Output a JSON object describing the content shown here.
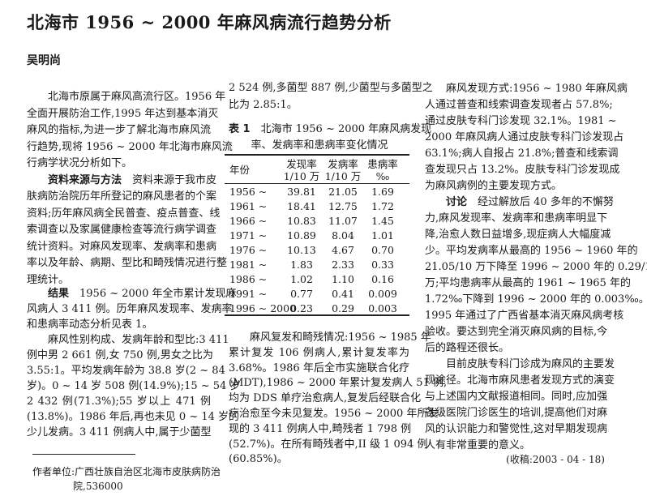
{
  "title": "北海市 1956 ~ 2000 年麻风病流行趋势分析",
  "author": "吴明尚",
  "columns": {
    "left_a": [
      {
        "indent": true,
        "lines": [
          "北海市原属于麻风高流行区。1956 年",
          "全面开展防治工作,1995 年达到基本消灭",
          "麻风的指标,为进一步了解北海市麻风流",
          "行趋势,现将 1956 ~ 2000 年北海市麻风流",
          "行病学状况分析如下。"
        ]
      },
      {
        "indent": true,
        "lead": "资料来源与方法",
        "lines": [
          "　资料来源于我市皮",
          "肤病防治院历年所登记的麻风患者的个案",
          "资料;历年麻风病全民普查、疫点普查、线",
          "索调查以及家属健康检查等流行病学调查",
          "统计资料。对麻风发现率、发病率和患病",
          "率以及年龄、病期、型比和畸残情况进行整",
          "理统计。"
        ]
      }
    ],
    "left_b": [
      {
        "indent": true,
        "lead": "结果",
        "lines": [
          "　1956 ~ 2000 年全市累计发现麻",
          "风病人 3 411 例。历年麻风发现率、发病率",
          "和患病率动态分析见表 1。"
        ]
      },
      {
        "indent": true,
        "lines": [
          "麻风性别构成、发病年龄和型比:3 411",
          "例中男 2 661 例,女 750 例,男女之比为",
          "3.55:1。平均发病年龄为 38.8 岁(2 ~ 84",
          "岁)。0 ~ 14 岁 508 例(14.9%);15 ~ 54 岁",
          "2 432 例(71.3%);55 岁以上 471 例",
          "(13.8%)。1986 年后,再也未见 0 ~ 14 岁的",
          "少儿发病。3 411 例病人中,属于少菌型"
        ],
        "continues": true
      }
    ],
    "mid_a": [
      {
        "indent": false,
        "lines": [
          "2 524 例,多菌型 887 例,少菌型与多菌型之",
          "比为 2.85:1。"
        ]
      }
    ],
    "mid_b": [
      {
        "indent": true,
        "lines": [
          "麻风复发和畸残情况:1956 ~ 1985 年",
          "累计复发 106 例病人,累计复发率为",
          "3.68%。1986 年后全市实施联合化疗",
          "(MDT),1986 ~ 2000 年累计复发病人 51 例,",
          "均为 DDS 单疗治愈病人,复发后经联合化",
          "疗治愈至今未见复发。1956 ~ 2000 年所发",
          "现的 3 411 例病人中,畸残者 1 798 例",
          "(52.7%)。在所有畸残者中,II 级 1 094 例",
          "(60.85%)。"
        ]
      }
    ],
    "right": [
      {
        "indent": true,
        "lines": [
          "麻风发现方式:1956 ~ 1980 年麻风病",
          "人通过普查和线索调查发现者占 57.8%;",
          "通过皮肤专科门诊发现 32.1%。1981 ~",
          "2000 年麻风病人通过皮肤专科门诊发现占",
          "63.1%;病人自报占 21.8%;普查和线索调",
          "查发现只占 13.2%。皮肤专科门诊发现成",
          "为麻风病例的主要发现方式。"
        ]
      },
      {
        "indent": true,
        "lead": "讨论",
        "lines": [
          "　经过解放后 40 多年的不懈努",
          "力,麻风发现率、发病率和患病率明显下",
          "降,治愈人数日益增多,现症病人大幅度减",
          "少。平均发病率从最高的 1956 ~ 1960 年的",
          "21.05/10 万下降至 1996 ~ 2000 年的 0.29/10",
          "万;平均患病率从最高的 1961 ~ 1965 年的",
          "1.72‰下降到 1996 ~ 2000 年的 0.003‰。",
          "1995 年通过了广西省基本消灭麻风病考核",
          "验收。要达到完全消灭麻风病的目标,今",
          "后的路程还很长。"
        ]
      },
      {
        "indent": true,
        "lines": [
          "目前皮肤专科门诊成为麻风的主要发",
          "现途径。北海市麻风患者发现方式的演变",
          "与上述国内文献报道相同。同时,应加强",
          "各级医院门诊医生的培训,提高他们对麻",
          "风的认识能力和警觉性,这对早期发现病",
          "人有非常重要的意义。"
        ]
      }
    ]
  },
  "table": {
    "label": "表 1",
    "caption_line1": "北海市 1956 ~ 2000 年麻风病发现",
    "caption_line2": "率、发病率和患病率变化情况",
    "headers": [
      {
        "line1": "年份",
        "line2": ""
      },
      {
        "line1": "发现率",
        "line2": "1/10 万"
      },
      {
        "line1": "发病率",
        "line2": "1/10 万"
      },
      {
        "line1": "患病率",
        "line2": "‰"
      }
    ],
    "rows": [
      [
        "1956 ~",
        "39.81",
        "21.05",
        "1.69"
      ],
      [
        "1961 ~",
        "18.41",
        "12.75",
        "1.72"
      ],
      [
        "1966 ~",
        "10.83",
        "11.07",
        "1.45"
      ],
      [
        "1971 ~",
        "10.89",
        "8.04",
        "1.01"
      ],
      [
        "1976 ~",
        "10.13",
        "4.67",
        "0.70"
      ],
      [
        "1981 ~",
        "1.83",
        "2.33",
        "0.33"
      ],
      [
        "1986 ~",
        "1.02",
        "1.10",
        "0.16"
      ],
      [
        "1991 ~",
        "0.77",
        "0.41",
        "0.009"
      ],
      [
        "1996 ~ 2000",
        "0.23",
        "0.29",
        "0.003"
      ]
    ]
  },
  "footnote": {
    "line1": "作者单位:广西壮族自治区北海市皮肤病防治",
    "line2": "院,536000"
  },
  "received": "(收稿:2003 - 04 - 18)"
}
